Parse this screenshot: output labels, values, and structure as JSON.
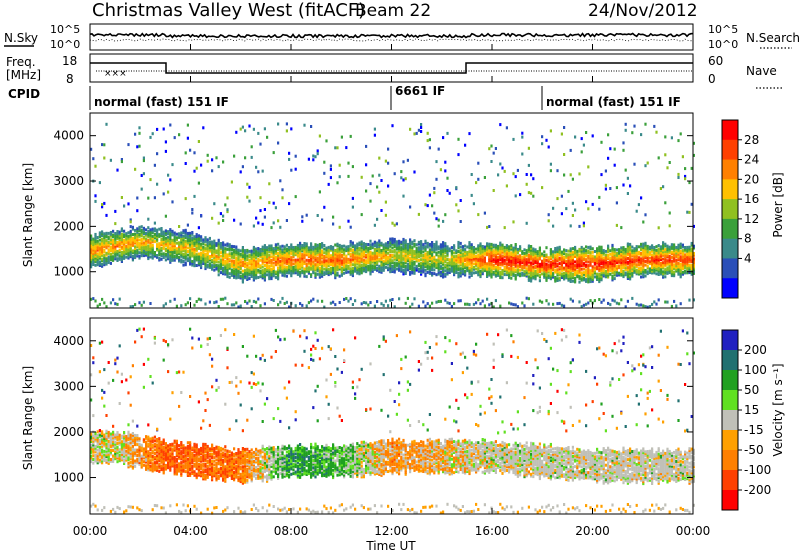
{
  "header": {
    "station": "Christmas Valley West (fitACF)",
    "beam": "Beam 22",
    "date": "24/Nov/2012"
  },
  "noise_panel": {
    "left_label": "N.Sky",
    "right_label": "N.Search",
    "ticks_left": [
      "10^5",
      "10^0"
    ],
    "ticks_right": [
      "10^5",
      "10^0"
    ]
  },
  "freq_panel": {
    "left_label_1": "Freq.",
    "left_label_2": "[MHz]",
    "right_label": "Nave",
    "ticks_left": [
      "18",
      "8"
    ],
    "ticks_right": [
      "60",
      "0"
    ]
  },
  "cpid": {
    "label": "CPID",
    "segments": [
      {
        "text": "normal (fast) 151 IF",
        "start_hour": 0
      },
      {
        "text": "6661 IF",
        "start_hour": 12
      },
      {
        "text": "normal (fast) 151 IF",
        "start_hour": 18
      }
    ]
  },
  "colors": {
    "power_scale": [
      "#0000ff",
      "#2a4fb8",
      "#3a8a8a",
      "#3aa03a",
      "#90c020",
      "#ffc000",
      "#ff8000",
      "#ff4000",
      "#ff0000"
    ],
    "velocity_scale": [
      "#2020c0",
      "#207070",
      "#20a020",
      "#60e020",
      "#c0c0b8",
      "#ffa000",
      "#ff8000",
      "#ff4000",
      "#ff0000"
    ]
  },
  "chart_data": [
    {
      "type": "heatmap",
      "title": "",
      "ylabel": "Slant Range [km]",
      "ylim": [
        200,
        4500
      ],
      "yticks": [
        "1000",
        "2000",
        "3000",
        "4000"
      ],
      "xlim": [
        "00:00",
        "24:00"
      ],
      "colorbar": {
        "label": "Power [dB]",
        "ticks": [
          "4",
          "8",
          "12",
          "16",
          "20",
          "24",
          "28"
        ],
        "range": [
          0,
          32
        ]
      },
      "main_band": [
        {
          "hour": 0,
          "range_center": 1500,
          "power_db": 24
        },
        {
          "hour": 2,
          "range_center": 1700,
          "power_db": 22
        },
        {
          "hour": 4,
          "range_center": 1550,
          "power_db": 20
        },
        {
          "hour": 6,
          "range_center": 1200,
          "power_db": 22
        },
        {
          "hour": 8,
          "range_center": 1300,
          "power_db": 26
        },
        {
          "hour": 10,
          "range_center": 1300,
          "power_db": 26
        },
        {
          "hour": 12,
          "range_center": 1400,
          "power_db": 20
        },
        {
          "hour": 14,
          "range_center": 1300,
          "power_db": 18
        },
        {
          "hour": 16,
          "range_center": 1300,
          "power_db": 30
        },
        {
          "hour": 18,
          "range_center": 1200,
          "power_db": 30
        },
        {
          "hour": 20,
          "range_center": 1200,
          "power_db": 30
        },
        {
          "hour": 22,
          "range_center": 1300,
          "power_db": 28
        },
        {
          "hour": 24,
          "range_center": 1300,
          "power_db": 28
        }
      ]
    },
    {
      "type": "heatmap",
      "title": "",
      "ylabel": "Slant Range [km]",
      "xlabel": "Time UT",
      "ylim": [
        200,
        4500
      ],
      "yticks": [
        "1000",
        "2000",
        "3000",
        "4000"
      ],
      "xticks": [
        "00:00",
        "04:00",
        "08:00",
        "12:00",
        "16:00",
        "20:00",
        "00:00"
      ],
      "colorbar": {
        "label": "Velocity [m s⁻¹]",
        "ticks": [
          "200",
          "100",
          "50",
          "15",
          "-15",
          "-50",
          "-100",
          "-200"
        ],
        "range": [
          -250,
          250
        ]
      },
      "main_band": [
        {
          "hour": 1,
          "range_center": 1700,
          "velocity": 0
        },
        {
          "hour": 3,
          "range_center": 1500,
          "velocity": -80
        },
        {
          "hour": 6,
          "range_center": 1300,
          "velocity": -60
        },
        {
          "hour": 8,
          "range_center": 1400,
          "velocity": 60
        },
        {
          "hour": 10,
          "range_center": 1400,
          "velocity": 40
        },
        {
          "hour": 12,
          "range_center": 1500,
          "velocity": -40
        },
        {
          "hour": 16,
          "range_center": 1500,
          "velocity": 0
        },
        {
          "hour": 20,
          "range_center": 1300,
          "velocity": 0
        },
        {
          "hour": 23,
          "range_center": 1300,
          "velocity": 0
        }
      ]
    }
  ]
}
